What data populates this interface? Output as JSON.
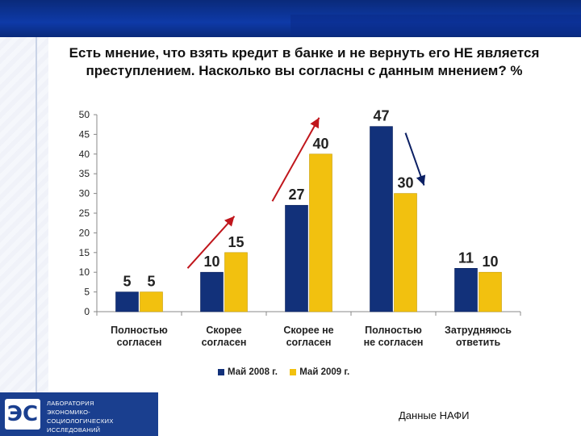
{
  "title": "Есть мнение, что взять кредит в банке и не вернуть его НЕ является преступлением. Насколько вы согласны с данным мнением? %",
  "source": "Данные НАФИ",
  "logo": {
    "mark": "ЭС",
    "lines": [
      "ЛАБОРАТОРИЯ",
      "ЭКОНОМИКО-СОЦИОЛОГИЧЕСКИХ",
      "ИССЛЕДОВАНИЙ"
    ]
  },
  "colors": {
    "series1": "#12317a",
    "series2": "#f2c10f",
    "arrow_red": "#c0161c",
    "arrow_navy": "#0b1f63"
  },
  "chart_data": {
    "type": "bar",
    "categories": [
      [
        "Полностью",
        "согласен"
      ],
      [
        "Скорее",
        "согласен"
      ],
      [
        "Скорее не",
        "согласен"
      ],
      [
        "Полностью",
        "не согласен"
      ],
      [
        "Затрудняюсь",
        "ответить"
      ]
    ],
    "series": [
      {
        "name": "Май 2008 г.",
        "values": [
          5,
          10,
          27,
          47,
          11
        ]
      },
      {
        "name": "Май 2009 г.",
        "values": [
          5,
          15,
          40,
          30,
          10
        ]
      }
    ],
    "ylim": [
      0,
      50
    ],
    "yticks": [
      0,
      5,
      10,
      15,
      20,
      25,
      30,
      35,
      40,
      45,
      50
    ],
    "grid": false,
    "legend": "bottom"
  }
}
